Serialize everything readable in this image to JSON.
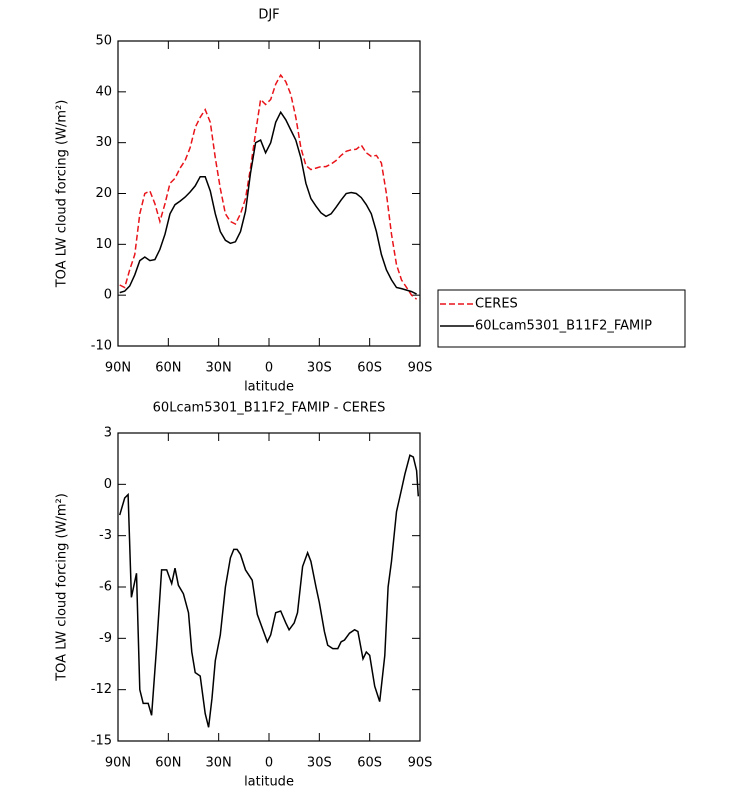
{
  "chart_data": [
    {
      "type": "line",
      "title": "DJF",
      "xlabel": "latitude",
      "ylabel": "TOA LW cloud forcing (W/m²)",
      "x": [
        89,
        86,
        83,
        80,
        77,
        74,
        71,
        68,
        65,
        62,
        59,
        56,
        53,
        50,
        47,
        44,
        41,
        38,
        35,
        32,
        29,
        26,
        23,
        20,
        17,
        14,
        11,
        8,
        5,
        2,
        -1,
        -4,
        -7,
        -10,
        -13,
        -16,
        -19,
        -22,
        -25,
        -28,
        -31,
        -34,
        -37,
        -40,
        -43,
        -46,
        -49,
        -52,
        -55,
        -58,
        -61,
        -64,
        -67,
        -70,
        -73,
        -76,
        -79,
        -82,
        -85,
        -88
      ],
      "series": [
        {
          "name": "CERES",
          "color": "#e8141a",
          "line_style": "dashed",
          "values": [
            2,
            1.5,
            5,
            8,
            16,
            20,
            20.5,
            18,
            14.5,
            18,
            22,
            23,
            25,
            26.5,
            29,
            33,
            35,
            36.5,
            34,
            27,
            21,
            16,
            14.5,
            14,
            16,
            19,
            25,
            32,
            38.5,
            37.5,
            38.5,
            41.5,
            43.3,
            42,
            39.5,
            35,
            29,
            25.5,
            24.7,
            25,
            25.3,
            25.3,
            25.8,
            26.5,
            27.5,
            28.3,
            28.6,
            28.7,
            29.5,
            28,
            27.3,
            27.5,
            26,
            20,
            12,
            6,
            3,
            1.5,
            0,
            -0.8
          ]
        },
        {
          "name": "60Lcam5301_B11F2_FAMIP",
          "color": "#000000",
          "line_style": "solid",
          "values": [
            0.5,
            0.8,
            1.8,
            4,
            6.8,
            7.5,
            6.8,
            7,
            9,
            12,
            16,
            17.8,
            18.5,
            19.3,
            20.3,
            21.5,
            23.3,
            23.3,
            20.5,
            16,
            12.5,
            10.8,
            10.2,
            10.5,
            12.5,
            16.5,
            24,
            30,
            30.5,
            28,
            30,
            34,
            36,
            34.5,
            32.5,
            30.5,
            27,
            22,
            19,
            17.5,
            16.2,
            15.5,
            16,
            17.3,
            18.7,
            20,
            20.2,
            20,
            19.2,
            17.8,
            16,
            12.5,
            8,
            5,
            3,
            1.5,
            1.3,
            1,
            0.7,
            0.2
          ]
        }
      ],
      "xlim": [
        90,
        -90
      ],
      "xticks": [
        {
          "value": 90,
          "label": "90N"
        },
        {
          "value": 60,
          "label": "60N"
        },
        {
          "value": 30,
          "label": "30N"
        },
        0,
        {
          "value": -30,
          "label": "30S"
        },
        {
          "value": -60,
          "label": "60S"
        },
        {
          "value": -90,
          "label": "90S"
        }
      ],
      "ylim": [
        -10,
        50
      ],
      "yticks": [
        -10,
        0,
        10,
        20,
        30,
        40,
        50
      ],
      "legend": "right"
    },
    {
      "type": "line",
      "title": "60Lcam5301_B11F2_FAMIP - CERES",
      "xlabel": "latitude",
      "ylabel": "TOA LW cloud forcing (W/m²)",
      "x": [
        89,
        86,
        84,
        82,
        79,
        77,
        75,
        72,
        70,
        67,
        64,
        61,
        58,
        56,
        54,
        51,
        48,
        46,
        44,
        41,
        38,
        36,
        34,
        32,
        29,
        26,
        23,
        21,
        19,
        17,
        14,
        10,
        7,
        4,
        1,
        -1,
        -4,
        -7,
        -10,
        -12,
        -15,
        -17,
        -20,
        -23,
        -25,
        -28,
        -30,
        -33,
        -35,
        -38,
        -41,
        -43,
        -45,
        -48,
        -51,
        -53,
        -56,
        -58,
        -60,
        -63,
        -66,
        -69,
        -71,
        -73,
        -76,
        -79,
        -81,
        -84,
        -86,
        -88,
        -89
      ],
      "values": [
        -1.8,
        -0.8,
        -0.6,
        -6.6,
        -5.2,
        -12,
        -12.8,
        -12.8,
        -13.5,
        -9.5,
        -5,
        -5,
        -5.8,
        -4.9,
        -5.9,
        -6.4,
        -7.5,
        -9.8,
        -11,
        -11.2,
        -13.4,
        -14.2,
        -12.5,
        -10.3,
        -8.8,
        -6,
        -4.3,
        -3.8,
        -3.8,
        -4.1,
        -5,
        -5.6,
        -7.6,
        -8.4,
        -9.2,
        -8.8,
        -7.5,
        -7.4,
        -8.1,
        -8.5,
        -8.1,
        -7.5,
        -4.8,
        -4,
        -4.5,
        -6,
        -6.9,
        -8.6,
        -9.4,
        -9.6,
        -9.6,
        -9.2,
        -9.1,
        -8.7,
        -8.5,
        -8.6,
        -10.2,
        -9.8,
        -10,
        -11.8,
        -12.7,
        -10,
        -6,
        -4.5,
        -1.6,
        -0.3,
        0.6,
        1.7,
        1.6,
        0.8,
        -0.7
      ],
      "color": "#000000",
      "xlim": [
        90,
        -90
      ],
      "xticks": [
        {
          "value": 90,
          "label": "90N"
        },
        {
          "value": 60,
          "label": "60N"
        },
        {
          "value": 30,
          "label": "30N"
        },
        0,
        {
          "value": -30,
          "label": "30S"
        },
        {
          "value": -60,
          "label": "60S"
        },
        {
          "value": -90,
          "label": "90S"
        }
      ],
      "ylim": [
        -15,
        3
      ],
      "yticks": [
        -15,
        -12,
        -9,
        -6,
        -3,
        0,
        3
      ]
    }
  ]
}
